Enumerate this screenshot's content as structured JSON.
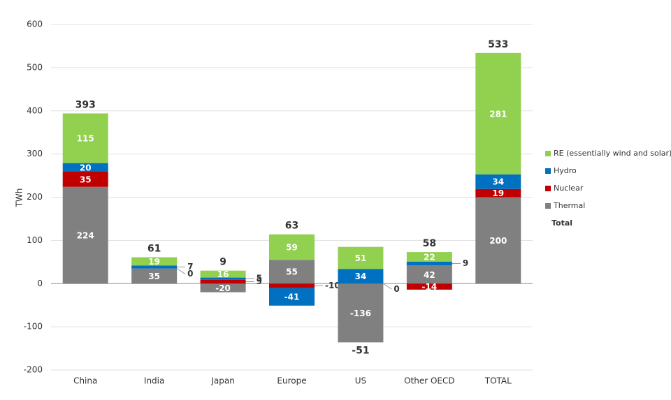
{
  "chart_data": {
    "type": "stacked-bar",
    "y_label": "TWh",
    "categories": [
      "China",
      "India",
      "Japan",
      "Europe",
      "US",
      "Other OECD",
      "TOTAL"
    ],
    "series": [
      {
        "name": "Thermal",
        "color": "#808080",
        "values": [
          224,
          35,
          -20,
          55,
          -136,
          42,
          200
        ]
      },
      {
        "name": "Nuclear",
        "color": "#c00000",
        "values": [
          35,
          0,
          9,
          -10,
          0,
          -14,
          19
        ]
      },
      {
        "name": "Hydro",
        "color": "#0070c0",
        "values": [
          20,
          7,
          5,
          -41,
          34,
          9,
          34
        ]
      },
      {
        "name": "RE (essentially wind and solar)",
        "color": "#92d050",
        "values": [
          115,
          19,
          16,
          59,
          51,
          22,
          281
        ]
      }
    ],
    "totals": {
      "name": "Total",
      "values": [
        393,
        61,
        9,
        63,
        -51,
        58,
        533
      ]
    },
    "ylim": [
      -200,
      600
    ],
    "yticks": [
      -200,
      -100,
      0,
      100,
      200,
      300,
      400,
      500,
      600
    ],
    "grid": true
  }
}
